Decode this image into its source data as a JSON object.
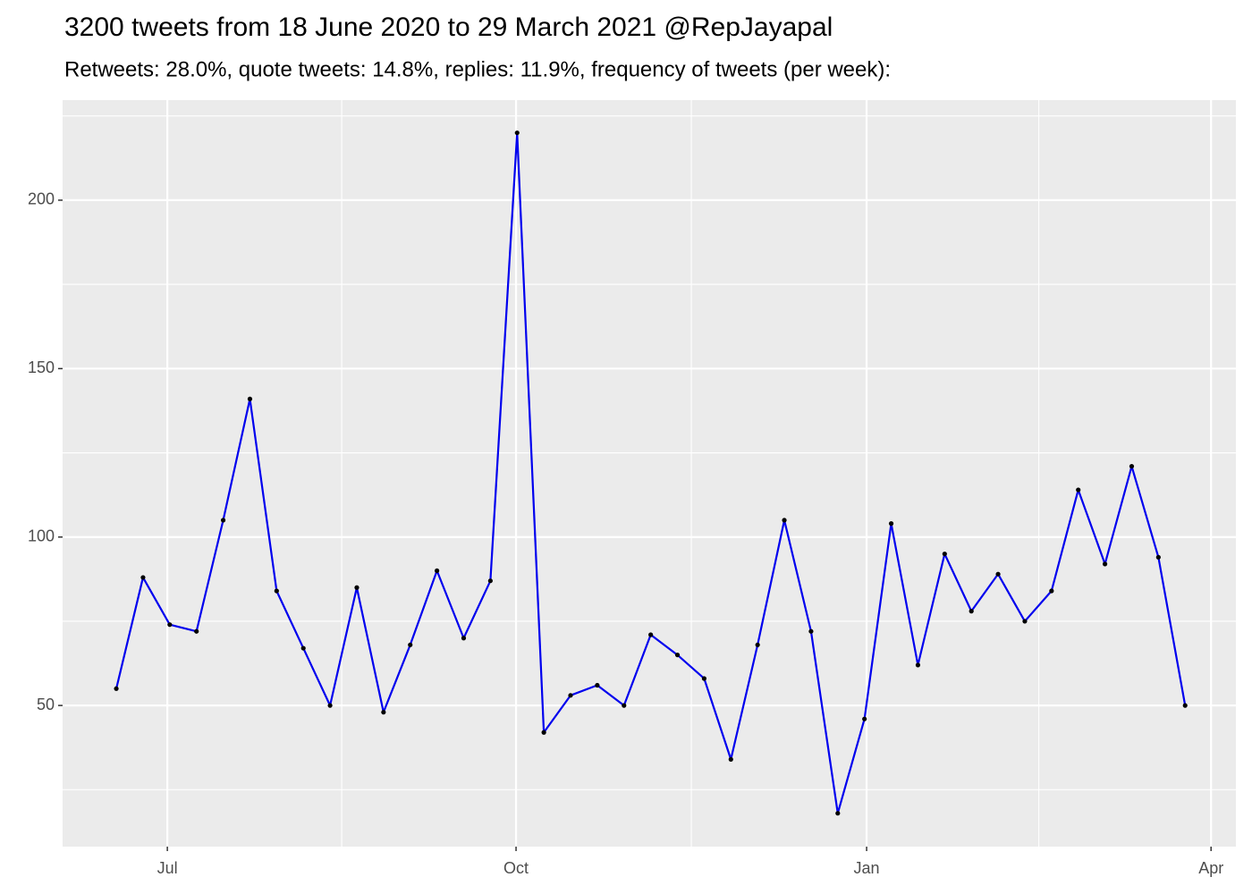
{
  "chart_data": {
    "type": "line",
    "title": "3200 tweets from 18 June 2020 to 29 March 2021 @RepJayapal",
    "subtitle": "Retweets: 28.0%, quote tweets: 14.8%, replies: 11.9%, frequency of tweets (per week):",
    "x": [
      0,
      1,
      2,
      3,
      4,
      5,
      6,
      7,
      8,
      9,
      10,
      11,
      12,
      13,
      14,
      15,
      16,
      17,
      18,
      19,
      20,
      21,
      22,
      23,
      24,
      25,
      26,
      27,
      28,
      29,
      30,
      31,
      32,
      33,
      34,
      35,
      36,
      37,
      38,
      39,
      40
    ],
    "series": [
      {
        "color": "#0000ee",
        "values": [
          55,
          88,
          74,
          72,
          105,
          141,
          84,
          67,
          50,
          85,
          48,
          68,
          90,
          70,
          87,
          220,
          42,
          53,
          56,
          50,
          71,
          65,
          58,
          34,
          68,
          105,
          72,
          18,
          46,
          104,
          62,
          95,
          78,
          89,
          75,
          84,
          114,
          92,
          121,
          94,
          50
        ]
      }
    ],
    "xlim": [
      -2.01,
      41.9
    ],
    "xticks": [
      {
        "value": 1.91,
        "label": "Jul"
      },
      {
        "value": 14.96,
        "label": "Oct"
      },
      {
        "value": 28.08,
        "label": "Jan"
      },
      {
        "value": 40.97,
        "label": "Apr"
      }
    ],
    "ylim": [
      8.1,
      229.7
    ],
    "yticks": [
      50,
      100,
      150,
      200
    ],
    "grid": true
  }
}
